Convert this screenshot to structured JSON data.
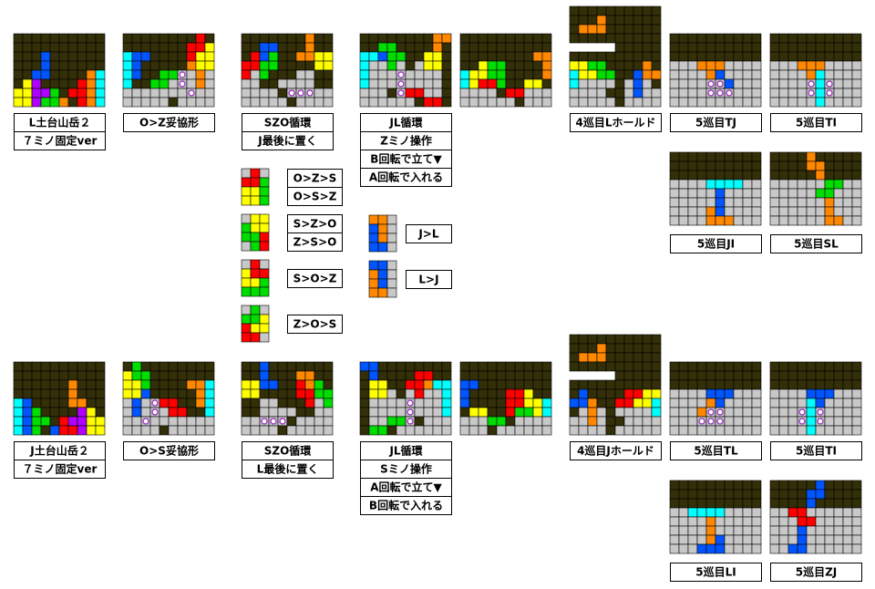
{
  "top": [
    "L土台山岳２",
    "７ミノ固定ver",
    "O>Z妥協形",
    "SZO循環",
    "J最後に置く",
    "JL循環",
    "Zミノ操作",
    "B回転で立て▼",
    "A回転で入れる",
    "4巡目Lホールド",
    "5巡目TJ",
    "5巡目TI",
    "5巡目JI",
    "5巡目SL"
  ],
  "orders": [
    "O>Z>S",
    "O>S>Z",
    "S>Z>O",
    "Z>S>O",
    "S>O>Z",
    "Z>O>S",
    "J>L",
    "L>J"
  ],
  "bottom": [
    "J土台山岳２",
    "７ミノ固定ver",
    "O>S妥協形",
    "SZO循環",
    "L最後に置く",
    "JL循環",
    "Sミノ操作",
    "A回転で立て▼",
    "B回転で入れる",
    "4巡目Jホールド",
    "5巡目TL",
    "5巡目TI",
    "5巡目LI",
    "5巡目ZJ"
  ]
}
